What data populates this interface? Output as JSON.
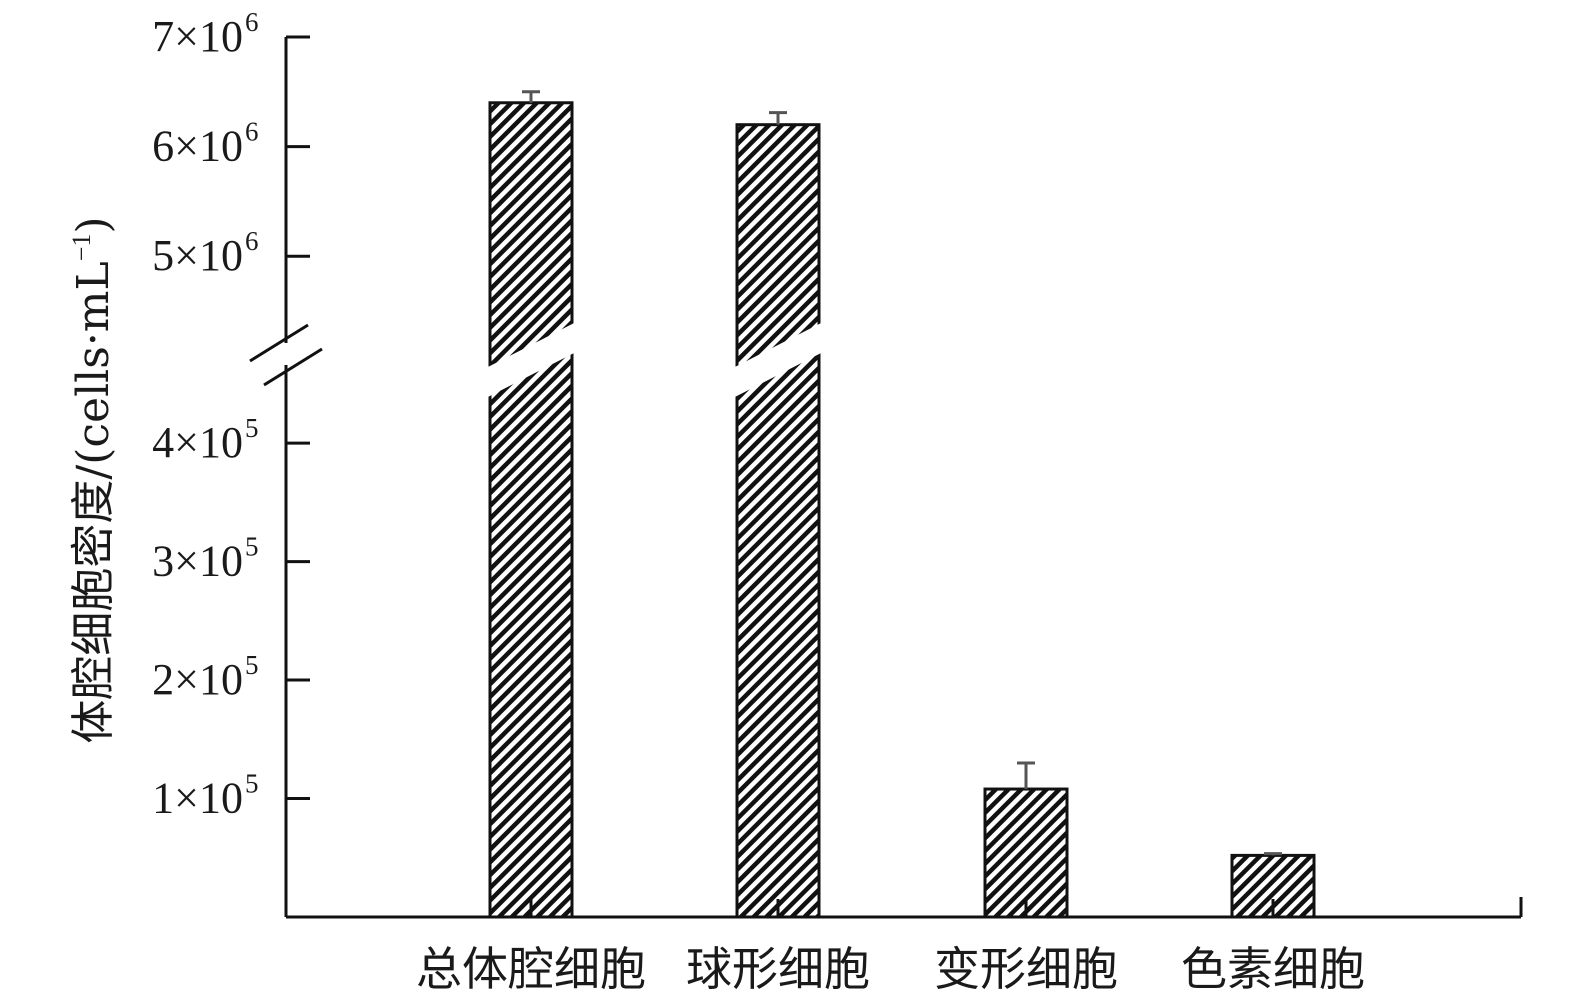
{
  "chart_data": {
    "type": "bar",
    "title": "",
    "xlabel": "",
    "ylabel": "体腔细胞密度/(cells·mL",
    "ylabel_sup": "−1",
    "ylabel_close": ")",
    "categories": [
      "总体腔细胞",
      "球形细胞",
      "变形细胞",
      "色素细胞"
    ],
    "values": [
      6400000,
      6200000,
      108000,
      52000
    ],
    "errors": [
      100000,
      110000,
      22000,
      1500
    ],
    "axis_break": {
      "between": [
        400000,
        5000000
      ]
    },
    "lower_ticks": [
      {
        "value": 100000,
        "mantissa": "1×10",
        "exp": "5"
      },
      {
        "value": 200000,
        "mantissa": "2×10",
        "exp": "5"
      },
      {
        "value": 300000,
        "mantissa": "3×10",
        "exp": "5"
      },
      {
        "value": 400000,
        "mantissa": "4×10",
        "exp": "5"
      }
    ],
    "upper_ticks": [
      {
        "value": 5000000,
        "mantissa": "5×10",
        "exp": "6"
      },
      {
        "value": 6000000,
        "mantissa": "6×10",
        "exp": "6"
      },
      {
        "value": 7000000,
        "mantissa": "7×10",
        "exp": "6"
      }
    ],
    "ylim_lower": [
      0,
      460000
    ],
    "ylim_upper": [
      4400000,
      7000000
    ],
    "bar_fill": "hatched",
    "bar_colors": {
      "stroke": "#111111",
      "hatch": "#111111",
      "background": "#ffffff"
    },
    "grid": false,
    "legend": "none"
  }
}
